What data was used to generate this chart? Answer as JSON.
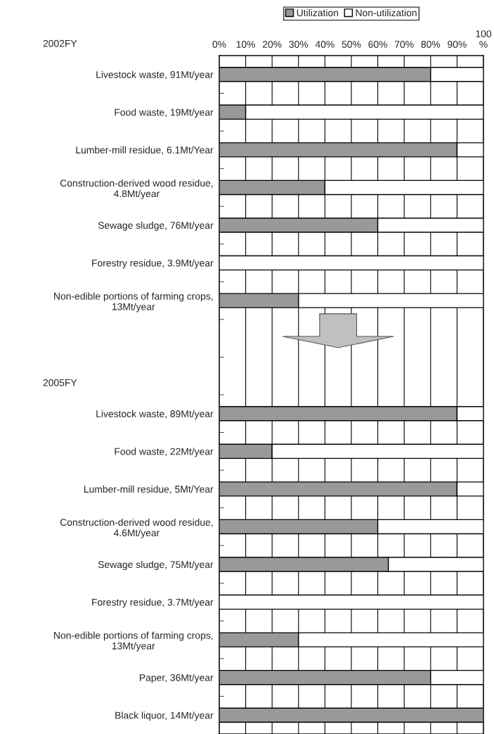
{
  "chart_data": {
    "type": "bar",
    "orientation": "horizontal",
    "stacked": true,
    "categories": [
      "Livestock waste, 91Mt/year",
      "Food waste, 19Mt/year",
      "Lumber-mill residue, 6.1Mt/Year",
      "Construction-derived wood residue,\n4.8Mt/year",
      "Sewage sludge, 76Mt/year",
      "Forestry residue, 3.9Mt/year",
      "Non-edible portions of farming crops,\n13Mt/year",
      null,
      null,
      "Livestock waste, 89Mt/year",
      "Food waste, 22Mt/year",
      "Lumber-mill residue, 5Mt/Year",
      "Construction-derived wood residue,\n4.6Mt/year",
      "Sewage sludge, 75Mt/year",
      "Forestry residue, 3.7Mt/year",
      "Non-edible portions of farming crops,\n13Mt/year",
      "Paper, 36Mt/year",
      "Black liquor, 14Mt/year"
    ],
    "series": [
      {
        "name": "Utilization",
        "color": "#999999",
        "values": [
          80,
          10,
          90,
          40,
          60,
          0,
          30,
          null,
          null,
          90,
          20,
          90,
          60,
          64,
          0,
          30,
          80,
          100
        ]
      },
      {
        "name": "Non-utilization",
        "color": "#ffffff",
        "values": [
          20,
          90,
          10,
          60,
          40,
          100,
          70,
          null,
          null,
          10,
          80,
          10,
          40,
          36,
          100,
          70,
          20,
          0
        ]
      }
    ],
    "xlim": [
      0,
      100
    ],
    "xticks": [
      {
        "value": 0,
        "label": "0%"
      },
      {
        "value": 10,
        "label": "10%"
      },
      {
        "value": 20,
        "label": "20%"
      },
      {
        "value": 30,
        "label": "30%"
      },
      {
        "value": 40,
        "label": "40%"
      },
      {
        "value": 50,
        "label": "50%"
      },
      {
        "value": 60,
        "label": "60%"
      },
      {
        "value": 70,
        "label": "70%"
      },
      {
        "value": 80,
        "label": "80%"
      },
      {
        "value": 90,
        "label": "90%"
      },
      {
        "value": 100,
        "label": "100\n%"
      }
    ],
    "grid": "x",
    "legend": "top",
    "annotations": [
      "2002FY",
      "2005FY"
    ]
  }
}
